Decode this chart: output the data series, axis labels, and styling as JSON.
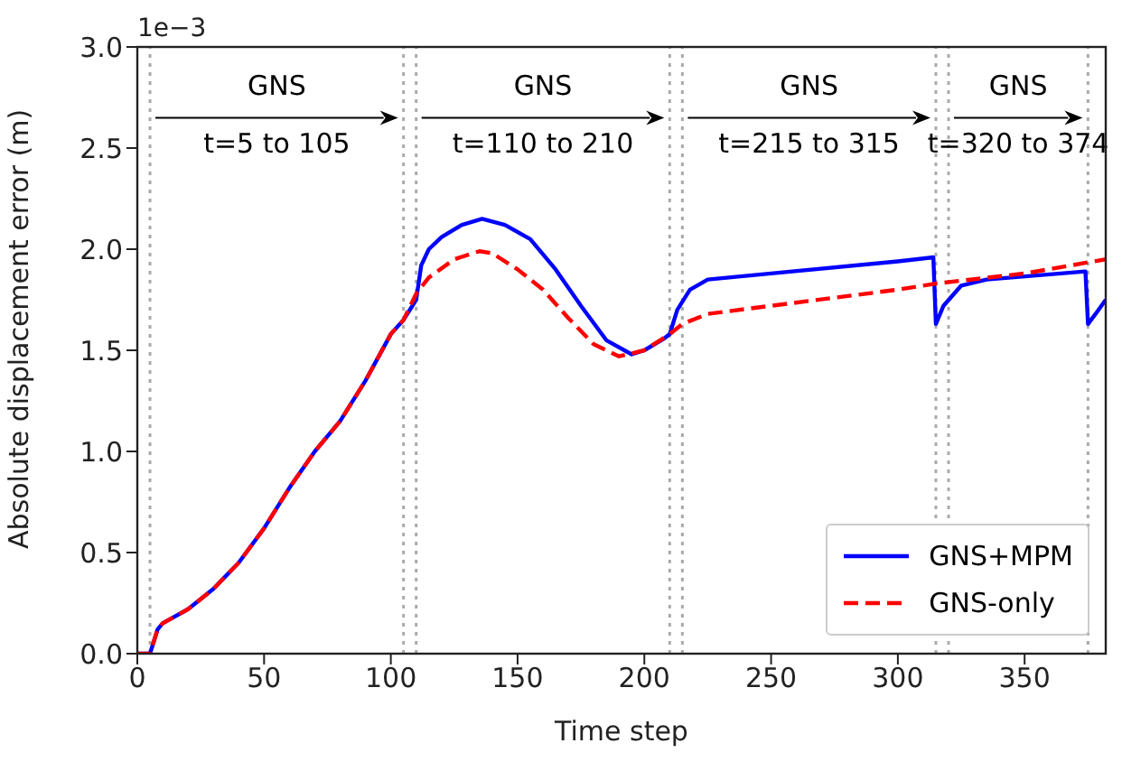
{
  "chart_data": {
    "type": "line",
    "xlabel": "Time step",
    "ylabel": "Absolute displacement error (m)",
    "xlim": [
      0,
      382
    ],
    "xticks": [
      0,
      50,
      100,
      150,
      200,
      250,
      300,
      350
    ],
    "ylim": [
      0,
      3
    ],
    "yticks": [
      {
        "value": 0,
        "label": "0.0"
      },
      {
        "value": 0.5,
        "label": "0.5"
      },
      {
        "value": 1,
        "label": "1.0"
      },
      {
        "value": 1.5,
        "label": "1.5"
      },
      {
        "value": 2,
        "label": "2.0"
      },
      {
        "value": 2.5,
        "label": "2.5"
      },
      {
        "value": 3,
        "label": "3.0"
      }
    ],
    "series": [
      {
        "name": "GNS+MPM",
        "color": "#0000ff",
        "line_style": "solid",
        "x": [
          0,
          5,
          8,
          10,
          20,
          30,
          40,
          50,
          60,
          70,
          80,
          90,
          100,
          105,
          110,
          112,
          115,
          120,
          128,
          136,
          145,
          155,
          165,
          175,
          185,
          195,
          200,
          208,
          210,
          213,
          218,
          225,
          250,
          300,
          314,
          315,
          318,
          325,
          335,
          374,
          375,
          378,
          382
        ],
        "values": [
          0,
          0,
          0.12,
          0.15,
          0.22,
          0.32,
          0.45,
          0.62,
          0.82,
          1,
          1.15,
          1.35,
          1.58,
          1.65,
          1.75,
          1.92,
          2,
          2.06,
          2.12,
          2.15,
          2.12,
          2.05,
          1.9,
          1.72,
          1.55,
          1.48,
          1.5,
          1.56,
          1.58,
          1.7,
          1.8,
          1.85,
          1.88,
          1.94,
          1.96,
          1.63,
          1.72,
          1.82,
          1.85,
          1.89,
          1.63,
          1.68,
          1.75
        ]
      },
      {
        "name": "GNS-only",
        "color": "#ff0000",
        "line_style": "dashed",
        "x": [
          0,
          5,
          8,
          10,
          20,
          30,
          40,
          50,
          60,
          70,
          80,
          90,
          100,
          105,
          110,
          115,
          125,
          135,
          140,
          150,
          160,
          170,
          180,
          190,
          200,
          210,
          215,
          225,
          250,
          300,
          315,
          350,
          382
        ],
        "values": [
          0,
          0,
          0.12,
          0.15,
          0.22,
          0.32,
          0.45,
          0.62,
          0.82,
          1,
          1.15,
          1.35,
          1.58,
          1.65,
          1.78,
          1.86,
          1.95,
          1.99,
          1.98,
          1.9,
          1.8,
          1.66,
          1.53,
          1.47,
          1.5,
          1.58,
          1.63,
          1.68,
          1.72,
          1.8,
          1.83,
          1.88,
          1.95
        ]
      }
    ],
    "ref_lines": [
      {
        "axis": "x",
        "value": 5,
        "color": "#aaaaaa",
        "line_style": "dotted"
      },
      {
        "axis": "x",
        "value": 105,
        "color": "#aaaaaa",
        "line_style": "dotted"
      },
      {
        "axis": "x",
        "value": 110,
        "color": "#aaaaaa",
        "line_style": "dotted"
      },
      {
        "axis": "x",
        "value": 210,
        "color": "#aaaaaa",
        "line_style": "dotted"
      },
      {
        "axis": "x",
        "value": 215,
        "color": "#aaaaaa",
        "line_style": "dotted"
      },
      {
        "axis": "x",
        "value": 315,
        "color": "#aaaaaa",
        "line_style": "dotted"
      },
      {
        "axis": "x",
        "value": 320,
        "color": "#aaaaaa",
        "line_style": "dotted"
      },
      {
        "axis": "x",
        "value": 375,
        "color": "#aaaaaa",
        "line_style": "dotted"
      }
    ],
    "annotations": [
      "1e−3",
      "GNS",
      {
        "text": "t=5 to 105",
        "x": 105,
        "y": 2.65
      },
      "GNS",
      {
        "text": "t=110 to 210",
        "x": 210,
        "y": 2.65
      },
      "GNS",
      {
        "text": "t=215 to 315",
        "x": 315,
        "y": 2.65
      },
      "GNS",
      {
        "text": "t=320 to 374",
        "x": 375,
        "y": 2.65
      }
    ],
    "legend": "bottom right",
    "grid": false,
    "marker": "none"
  }
}
